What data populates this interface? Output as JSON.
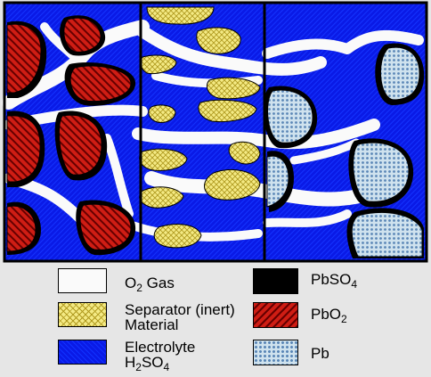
{
  "legend": {
    "gas": {
      "formula": "O",
      "sub": "2",
      "rest": " Gas"
    },
    "pbso4": {
      "formula": "PbSO",
      "sub": "4"
    },
    "separator": {
      "line1": "Separator (inert)",
      "line2": "Material"
    },
    "pbo2": {
      "formula": "PbO",
      "sub": "2"
    },
    "electrolyte": {
      "line1": "Electrolyte",
      "formula": "H",
      "sub": "2",
      "rest": "SO",
      "sub2": "4"
    },
    "pb": {
      "label": "Pb"
    }
  },
  "colors": {
    "electrolyte": "#0a1ae6",
    "gas": "#fafafa",
    "separator": "#f4ea84",
    "pbso4": "#000000",
    "pbo2": "#cf1d14",
    "pb": "#cfe2ee",
    "background": "#e6e6e6"
  }
}
